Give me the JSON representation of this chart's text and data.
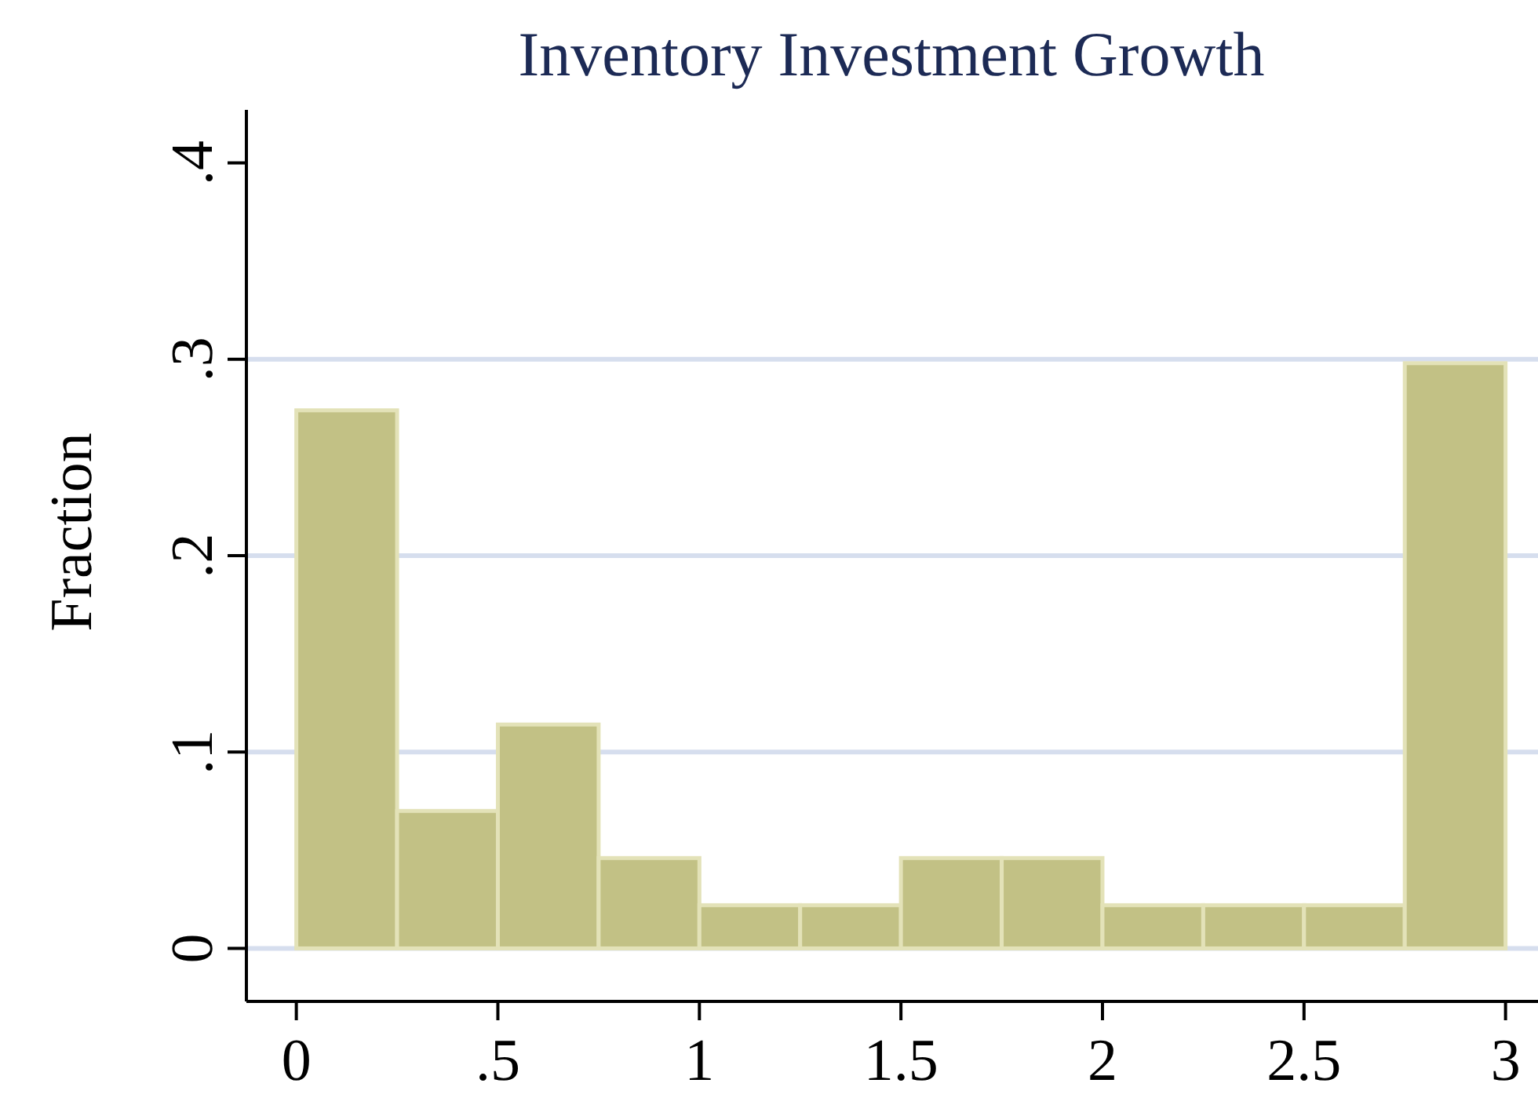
{
  "chart_data": {
    "type": "histogram",
    "title": "Inventory Investment Growth",
    "ylabel": "Fraction",
    "bins": [
      0,
      0.25,
      0.5,
      0.75,
      1,
      1.25,
      1.5,
      1.75,
      2,
      2.25,
      2.5,
      2.75,
      3
    ],
    "values": [
      0.274,
      0.07,
      0.114,
      0.046,
      0.022,
      0.022,
      0.046,
      0.046,
      0.022,
      0.022,
      0.022,
      0.298
    ],
    "color": "#c2c185",
    "xlim": [
      -0.12,
      3.1
    ],
    "xticks": [
      0,
      {
        "value": 0.5,
        "label": ".5"
      },
      1,
      1.5,
      2,
      2.5,
      3
    ],
    "ylim": [
      -0.027,
      0.427
    ],
    "yticks": [
      0,
      {
        "value": 0.1,
        "label": ".1"
      },
      {
        "value": 0.2,
        "label": ".2"
      },
      {
        "value": 0.3,
        "label": ".3"
      },
      {
        "value": 0.4,
        "label": ".4"
      }
    ],
    "grid": "y"
  }
}
